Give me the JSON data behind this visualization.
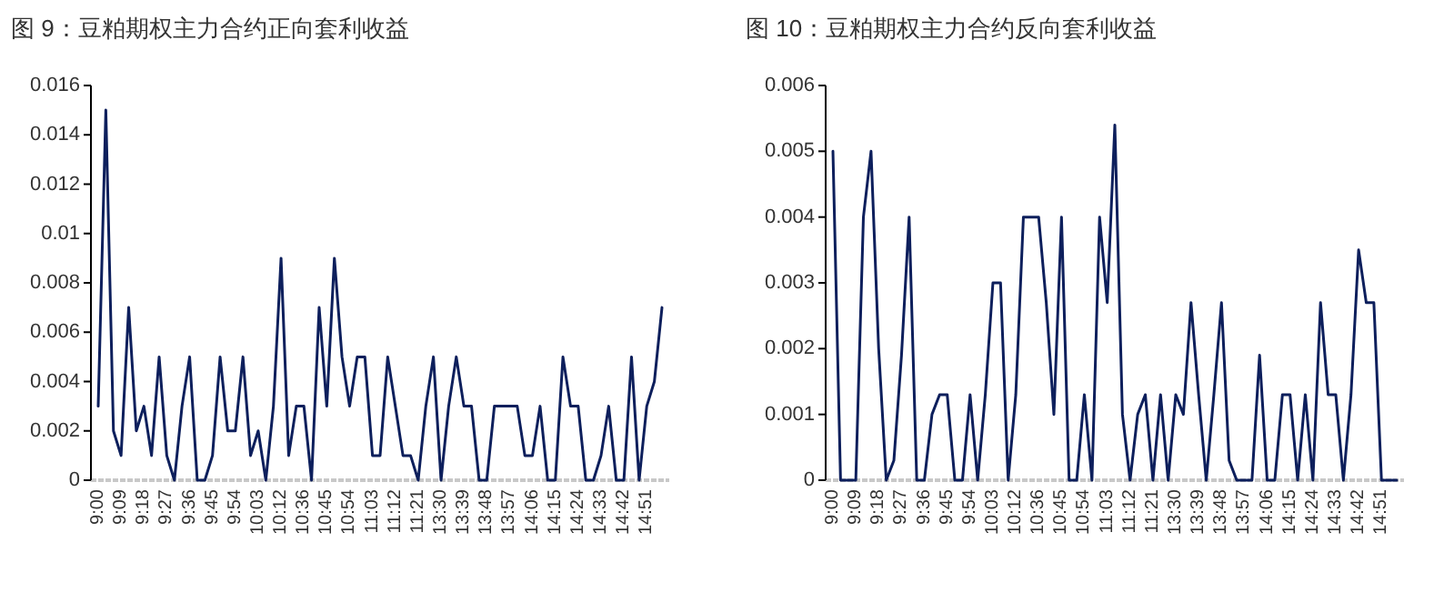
{
  "chart_data": [
    {
      "type": "line",
      "title": "图 9：豆粕期权主力合约正向套利收益",
      "categories": [
        "9:00",
        null,
        null,
        "9:09",
        null,
        null,
        "9:18",
        null,
        null,
        "9:27",
        null,
        null,
        "9:36",
        null,
        null,
        "9:45",
        null,
        null,
        "9:54",
        null,
        null,
        "10:03",
        null,
        null,
        "10:12",
        null,
        null,
        "10:36",
        null,
        null,
        "10:45",
        null,
        null,
        "10:54",
        null,
        null,
        "11:03",
        null,
        null,
        "11:12",
        null,
        null,
        "11:21",
        null,
        null,
        "13:30",
        null,
        null,
        "13:39",
        null,
        null,
        "13:48",
        null,
        null,
        "13:57",
        null,
        null,
        "14:06",
        null,
        null,
        "14:15",
        null,
        null,
        "14:24",
        null,
        null,
        "14:33",
        null,
        null,
        "14:42",
        null,
        null,
        "14:51",
        null,
        null
      ],
      "series": [
        {
          "color": "#0d1f5c",
          "values": [
            0.003,
            0.015,
            0.002,
            0.001,
            0.007,
            0.002,
            0.003,
            0.001,
            0.005,
            0.001,
            0,
            0.003,
            0.005,
            0,
            0,
            0.001,
            0.005,
            0.002,
            0.002,
            0.005,
            0.001,
            0.002,
            0,
            0.003,
            0.009,
            0.001,
            0.003,
            0.003,
            0,
            0.007,
            0.003,
            0.009,
            0.005,
            0.003,
            0.005,
            0.005,
            0.001,
            0.001,
            0.005,
            0.003,
            0.001,
            0.001,
            0,
            0.003,
            0.005,
            0,
            0.003,
            0.005,
            0.003,
            0.003,
            0,
            0,
            0.003,
            0.003,
            0.003,
            0.003,
            0.001,
            0.001,
            0.003,
            0,
            0,
            0.005,
            0.003,
            0.003,
            0,
            0,
            0.001,
            0.003,
            0,
            0,
            0.005,
            0,
            0.003,
            0.004,
            0.007
          ]
        }
      ],
      "ylim": [
        0,
        0.016
      ],
      "yticks": [
        0,
        0.002,
        0.004,
        0.006,
        0.008,
        0.01,
        0.012,
        0.014,
        0.016
      ],
      "grid": false
    },
    {
      "type": "line",
      "title": "图 10：豆粕期权主力合约反向套利收益",
      "categories": [
        "9:00",
        null,
        null,
        "9:09",
        null,
        null,
        "9:18",
        null,
        null,
        "9:27",
        null,
        null,
        "9:36",
        null,
        null,
        "9:45",
        null,
        null,
        "9:54",
        null,
        null,
        "10:03",
        null,
        null,
        "10:12",
        null,
        null,
        "10:36",
        null,
        null,
        "10:45",
        null,
        null,
        "10:54",
        null,
        null,
        "11:03",
        null,
        null,
        "11:12",
        null,
        null,
        "11:21",
        null,
        null,
        "13:30",
        null,
        null,
        "13:39",
        null,
        null,
        "13:48",
        null,
        null,
        "13:57",
        null,
        null,
        "14:06",
        null,
        null,
        "14:15",
        null,
        null,
        "14:24",
        null,
        null,
        "14:33",
        null,
        null,
        "14:42",
        null,
        null,
        "14:51",
        null,
        null
      ],
      "series": [
        {
          "color": "#0d1f5c",
          "values": [
            0.005,
            0,
            0,
            0,
            0.004,
            0.005,
            0.002,
            0,
            0.0003,
            0.0019,
            0.004,
            0,
            0,
            0.001,
            0.0013,
            0.0013,
            0,
            0,
            0.0013,
            0,
            0.0013,
            0.003,
            0.003,
            0,
            0.0013,
            0.004,
            0.004,
            0.004,
            0.0027,
            0.001,
            0.004,
            0,
            0,
            0.0013,
            0,
            0.004,
            0.0027,
            0.0054,
            0.001,
            0,
            0.001,
            0.0013,
            0,
            0.0013,
            0,
            0.0013,
            0.001,
            0.0027,
            0.0013,
            0,
            0.0013,
            0.0027,
            0.0003,
            0,
            0,
            0,
            0.0019,
            0,
            0,
            0.0013,
            0.0013,
            0,
            0.0013,
            0,
            0.0027,
            0.0013,
            0.0013,
            0,
            0.0013,
            0.0035,
            0.0027,
            0.0027,
            0,
            0,
            0
          ]
        }
      ],
      "ylim": [
        0,
        0.006
      ],
      "yticks": [
        0,
        0.001,
        0.002,
        0.003,
        0.004,
        0.005,
        0.006
      ],
      "grid": false
    }
  ]
}
